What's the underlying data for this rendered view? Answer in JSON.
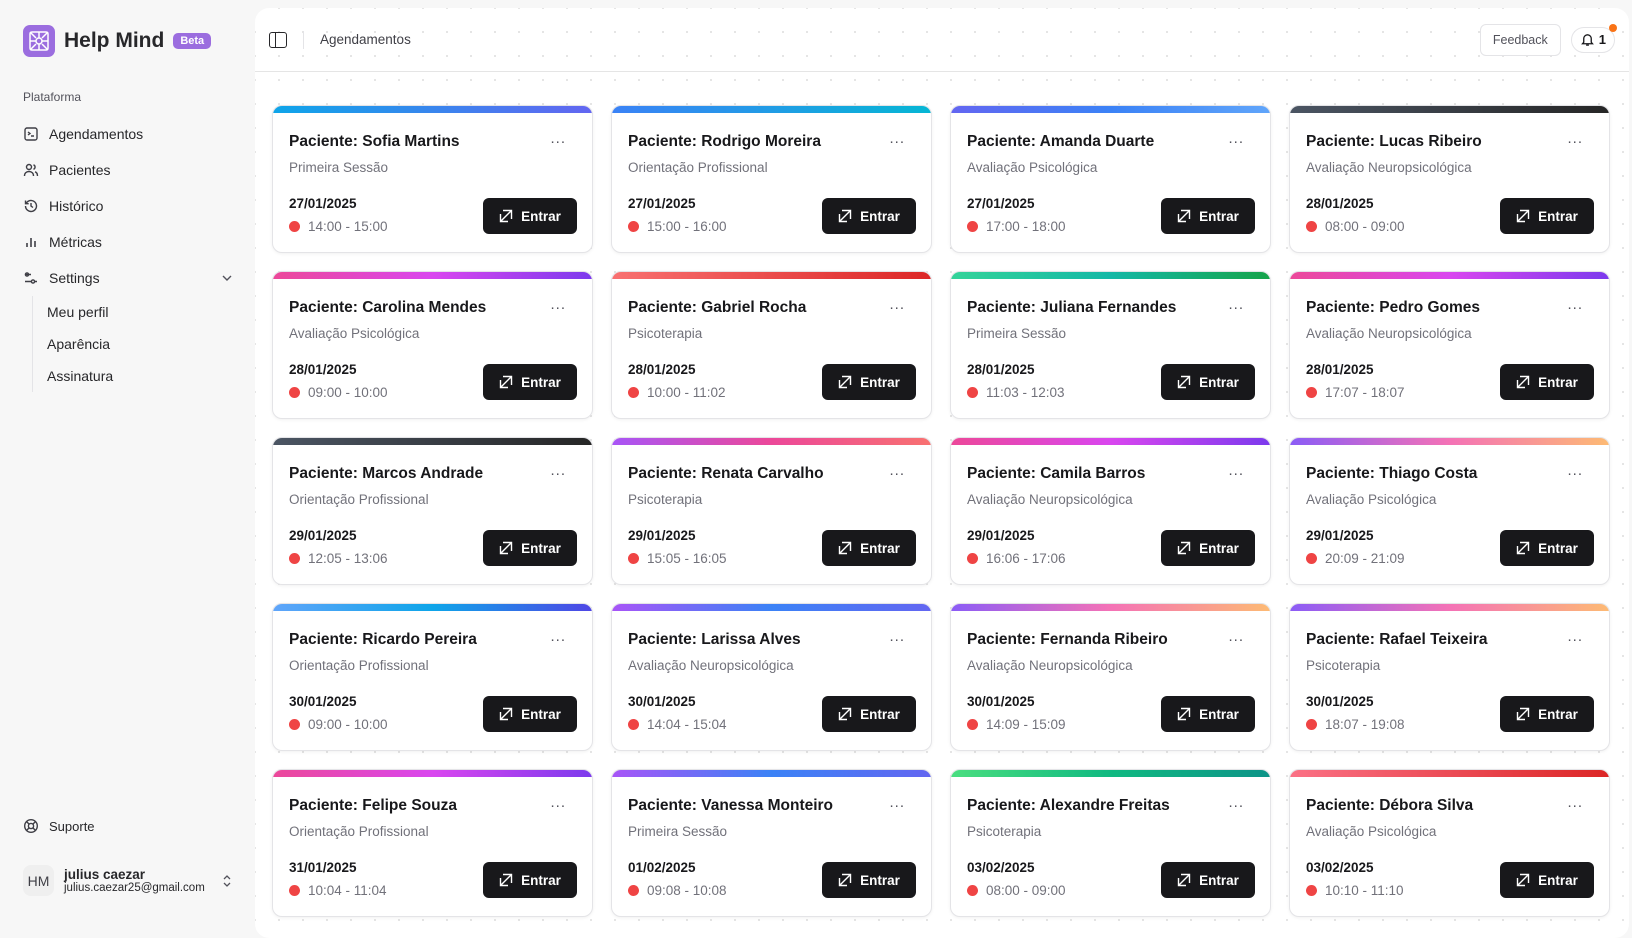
{
  "brand": {
    "name": "Help Mind",
    "badge": "Beta",
    "color": "#9b6ddf"
  },
  "sidebar": {
    "section": "Plataforma",
    "items": [
      {
        "label": "Agendamentos",
        "icon": "calendar-terminal-icon"
      },
      {
        "label": "Pacientes",
        "icon": "users-icon"
      },
      {
        "label": "Histórico",
        "icon": "history-icon"
      },
      {
        "label": "Métricas",
        "icon": "bar-chart-icon"
      }
    ],
    "settings": {
      "label": "Settings",
      "icon": "sliders-icon",
      "sub": [
        "Meu perfil",
        "Aparência",
        "Assinatura"
      ]
    },
    "support": "Suporte",
    "user": {
      "initials": "HM",
      "name": "julius caezar",
      "email": "julius.caezar25@gmail.com"
    }
  },
  "header": {
    "breadcrumb": "Agendamentos",
    "feedback": "Feedback",
    "notifications": "1"
  },
  "card_labels": {
    "patient_prefix": "Paciente: ",
    "enter": "Entrar",
    "more": "..."
  },
  "appointments": [
    {
      "patient": "Sofia Martins",
      "type": "Primeira Sessão",
      "date": "27/01/2025",
      "time": "14:00 - 15:00",
      "gradient": [
        "#0ea5e9",
        "#6366f1"
      ]
    },
    {
      "patient": "Rodrigo Moreira",
      "type": "Orientação Profissional",
      "date": "27/01/2025",
      "time": "15:00 - 16:00",
      "gradient": [
        "#3b82f6",
        "#06b6d4"
      ]
    },
    {
      "patient": "Amanda Duarte",
      "type": "Avaliação Psicológica",
      "date": "27/01/2025",
      "time": "17:00 - 18:00",
      "gradient": [
        "#6366f1",
        "#3b82f6",
        "#60a5fa"
      ]
    },
    {
      "patient": "Lucas Ribeiro",
      "type": "Avaliação Neuropsicológica",
      "date": "28/01/2025",
      "time": "08:00 - 09:00",
      "gradient": [
        "#4b5563",
        "#262626"
      ]
    },
    {
      "patient": "Carolina Mendes",
      "type": "Avaliação Psicológica",
      "date": "28/01/2025",
      "time": "09:00 - 10:00",
      "gradient": [
        "#ec4899",
        "#d946ef",
        "#7c3aed"
      ]
    },
    {
      "patient": "Gabriel Rocha",
      "type": "Psicoterapia",
      "date": "28/01/2025",
      "time": "10:00 - 11:02",
      "gradient": [
        "#f87171",
        "#dc2626"
      ]
    },
    {
      "patient": "Juliana Fernandes",
      "type": "Primeira Sessão",
      "date": "28/01/2025",
      "time": "11:03 - 12:03",
      "gradient": [
        "#34d399",
        "#14b8a6",
        "#16a34a"
      ]
    },
    {
      "patient": "Pedro Gomes",
      "type": "Avaliação Neuropsicológica",
      "date": "28/01/2025",
      "time": "17:07 - 18:07",
      "gradient": [
        "#ec4899",
        "#d946ef",
        "#7c3aed"
      ]
    },
    {
      "patient": "Marcos Andrade",
      "type": "Orientação Profissional",
      "date": "29/01/2025",
      "time": "12:05 - 13:06",
      "gradient": [
        "#4b5563",
        "#262626"
      ]
    },
    {
      "patient": "Renata Carvalho",
      "type": "Psicoterapia",
      "date": "29/01/2025",
      "time": "15:05 - 16:05",
      "gradient": [
        "#a855f7",
        "#ec4899",
        "#f87171"
      ]
    },
    {
      "patient": "Camila Barros",
      "type": "Avaliação Neuropsicológica",
      "date": "29/01/2025",
      "time": "16:06 - 17:06",
      "gradient": [
        "#ec4899",
        "#d946ef",
        "#7c3aed"
      ]
    },
    {
      "patient": "Thiago Costa",
      "type": "Avaliação Psicológica",
      "date": "29/01/2025",
      "time": "20:09 - 21:09",
      "gradient": [
        "#8b5cf6",
        "#f472b6",
        "#fdba74"
      ]
    },
    {
      "patient": "Ricardo Pereira",
      "type": "Orientação Profissional",
      "date": "30/01/2025",
      "time": "09:00 - 10:00",
      "gradient": [
        "#60a5fa",
        "#0ea5e9",
        "#4f46e5"
      ]
    },
    {
      "patient": "Larissa Alves",
      "type": "Avaliação Neuropsicológica",
      "date": "30/01/2025",
      "time": "14:04 - 15:04",
      "gradient": [
        "#a855f7",
        "#3b82f6",
        "#6366f1"
      ]
    },
    {
      "patient": "Fernanda Ribeiro",
      "type": "Avaliação Neuropsicológica",
      "date": "30/01/2025",
      "time": "14:09 - 15:09",
      "gradient": [
        "#8b5cf6",
        "#f472b6",
        "#fdba74"
      ]
    },
    {
      "patient": "Rafael Teixeira",
      "type": "Psicoterapia",
      "date": "30/01/2025",
      "time": "18:07 - 19:08",
      "gradient": [
        "#8b5cf6",
        "#f472b6",
        "#fdba74"
      ]
    },
    {
      "patient": "Felipe Souza",
      "type": "Orientação Profissional",
      "date": "31/01/2025",
      "time": "10:04 - 11:04",
      "gradient": [
        "#ec4899",
        "#d946ef",
        "#7c3aed"
      ]
    },
    {
      "patient": "Vanessa Monteiro",
      "type": "Primeira Sessão",
      "date": "01/02/2025",
      "time": "09:08 - 10:08",
      "gradient": [
        "#a855f7",
        "#3b82f6",
        "#6366f1"
      ]
    },
    {
      "patient": "Alexandre Freitas",
      "type": "Psicoterapia",
      "date": "03/02/2025",
      "time": "08:00 - 09:00",
      "gradient": [
        "#4ade80",
        "#10b981",
        "#0d9488"
      ]
    },
    {
      "patient": "Débora Silva",
      "type": "Avaliação Psicológica",
      "date": "03/02/2025",
      "time": "10:10 - 11:10",
      "gradient": [
        "#fb7185",
        "#dc2626"
      ]
    }
  ]
}
